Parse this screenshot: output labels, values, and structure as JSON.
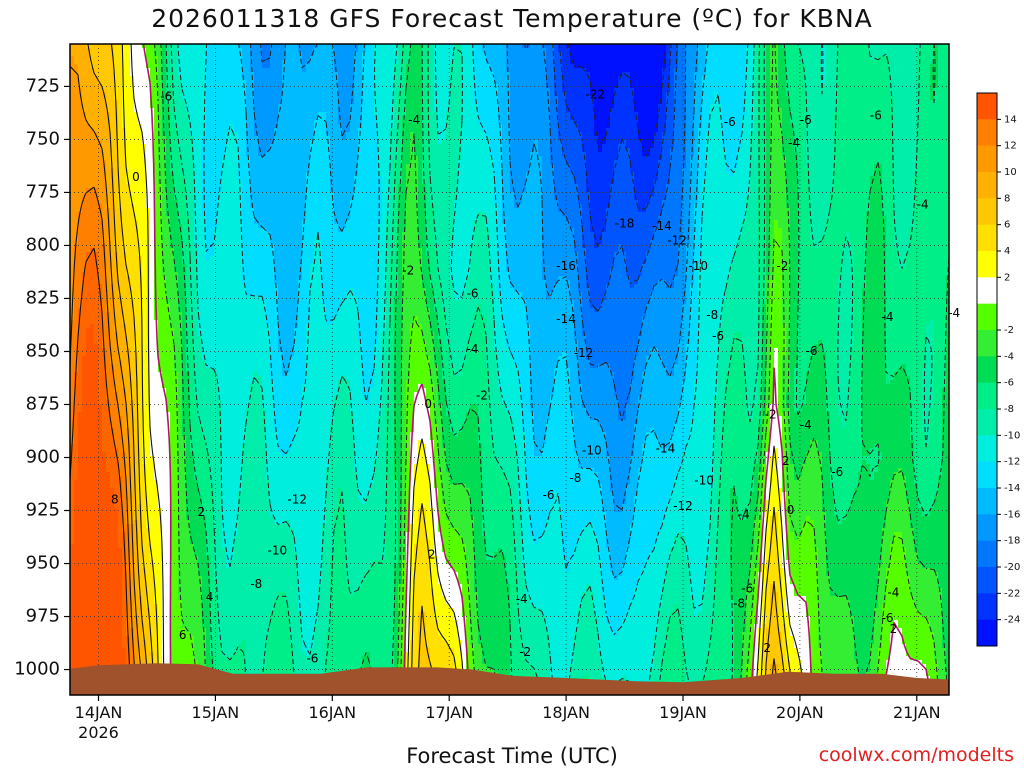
{
  "title": "2026011318 GFS Forecast Temperature (ºC) for KBNA",
  "credit": "coolwx.com/modelts",
  "chart_data": {
    "type": "heatmap",
    "title": "2026011318 GFS Forecast Temperature (ºC) for KBNA",
    "xlabel": "Forecast Time (UTC)",
    "ylabel": "",
    "x_ticks": [
      "14JAN",
      "15JAN",
      "16JAN",
      "17JAN",
      "18JAN",
      "19JAN",
      "20JAN",
      "21JAN"
    ],
    "x_tick_sublabel": "2026",
    "y_ticks": [
      725,
      750,
      775,
      800,
      825,
      850,
      875,
      900,
      925,
      950,
      975,
      1000
    ],
    "y_range": [
      1012,
      705
    ],
    "x_range_days": [
      0,
      7.4
    ],
    "grid": true,
    "colorbar": {
      "placement": "right",
      "tick_labels": [
        14,
        12,
        10,
        8,
        6,
        4,
        2,
        -2,
        -4,
        -6,
        -8,
        -10,
        -12,
        -14,
        -16,
        -18,
        -20,
        -22,
        -24
      ],
      "levels": [
        {
          "value": 16,
          "color": "#ff5500"
        },
        {
          "value": 14,
          "color": "#ff6600"
        },
        {
          "value": 12,
          "color": "#ff7f00"
        },
        {
          "value": 10,
          "color": "#ff9900"
        },
        {
          "value": 8,
          "color": "#ffb000"
        },
        {
          "value": 6,
          "color": "#ffc800"
        },
        {
          "value": 4,
          "color": "#ffe000"
        },
        {
          "value": 2,
          "color": "#ffff00"
        },
        {
          "value": 0,
          "color": "#ffffff"
        },
        {
          "value": -2,
          "color": "#55ff00"
        },
        {
          "value": -4,
          "color": "#33ee33"
        },
        {
          "value": -6,
          "color": "#00dd55"
        },
        {
          "value": -8,
          "color": "#00ee88"
        },
        {
          "value": -10,
          "color": "#00eeaa"
        },
        {
          "value": -12,
          "color": "#00eedd"
        },
        {
          "value": -14,
          "color": "#00ddff"
        },
        {
          "value": -16,
          "color": "#00bbff"
        },
        {
          "value": -18,
          "color": "#0099ff"
        },
        {
          "value": -20,
          "color": "#0077ff"
        },
        {
          "value": -22,
          "color": "#0055ff"
        },
        {
          "value": -24,
          "color": "#0033ff"
        },
        {
          "value": -26,
          "color": "#0011ff"
        }
      ]
    },
    "contour_labels": [
      {
        "t": 0.58,
        "p": 730,
        "text": "-6"
      },
      {
        "t": 0.32,
        "p": 768,
        "text": "0"
      },
      {
        "t": 0.14,
        "p": 920,
        "text": "8"
      },
      {
        "t": 0.88,
        "p": 926,
        "text": "2"
      },
      {
        "t": 0.95,
        "p": 966,
        "text": "4"
      },
      {
        "t": 0.72,
        "p": 984,
        "text": "6"
      },
      {
        "t": 1.7,
        "p": 920,
        "text": "-12"
      },
      {
        "t": 1.53,
        "p": 944,
        "text": "-10"
      },
      {
        "t": 1.35,
        "p": 960,
        "text": "-8"
      },
      {
        "t": 1.83,
        "p": 995,
        "text": "-6"
      },
      {
        "t": 2.7,
        "p": 741,
        "text": "-4"
      },
      {
        "t": 2.65,
        "p": 812,
        "text": "-2"
      },
      {
        "t": 3.2,
        "p": 823,
        "text": "-6"
      },
      {
        "t": 3.2,
        "p": 849,
        "text": "-4"
      },
      {
        "t": 3.28,
        "p": 871,
        "text": "-2"
      },
      {
        "t": 2.82,
        "p": 875,
        "text": "0"
      },
      {
        "t": 2.85,
        "p": 946,
        "text": "2"
      },
      {
        "t": 4.25,
        "p": 729,
        "text": "-22"
      },
      {
        "t": 4.5,
        "p": 790,
        "text": "-18"
      },
      {
        "t": 4.82,
        "p": 791,
        "text": "-14"
      },
      {
        "t": 4.0,
        "p": 810,
        "text": "-16"
      },
      {
        "t": 4.95,
        "p": 798,
        "text": "-12"
      },
      {
        "t": 4.0,
        "p": 835,
        "text": "-14"
      },
      {
        "t": 4.15,
        "p": 851,
        "text": "-12"
      },
      {
        "t": 5.13,
        "p": 810,
        "text": "-10"
      },
      {
        "t": 5.25,
        "p": 833,
        "text": "-8"
      },
      {
        "t": 5.3,
        "p": 843,
        "text": "-6"
      },
      {
        "t": 5.4,
        "p": 742,
        "text": "-6"
      },
      {
        "t": 4.85,
        "p": 896,
        "text": "-14"
      },
      {
        "t": 4.22,
        "p": 897,
        "text": "-10"
      },
      {
        "t": 4.08,
        "p": 910,
        "text": "-8"
      },
      {
        "t": 3.85,
        "p": 918,
        "text": "-6"
      },
      {
        "t": 3.62,
        "p": 967,
        "text": "-4"
      },
      {
        "t": 3.65,
        "p": 992,
        "text": "-2"
      },
      {
        "t": 5.18,
        "p": 911,
        "text": "-10"
      },
      {
        "t": 5.0,
        "p": 923,
        "text": "-12"
      },
      {
        "t": 5.52,
        "p": 927,
        "text": "-4"
      },
      {
        "t": 5.55,
        "p": 962,
        "text": "-6"
      },
      {
        "t": 5.48,
        "p": 969,
        "text": "-8"
      },
      {
        "t": 6.05,
        "p": 741,
        "text": "-6"
      },
      {
        "t": 5.95,
        "p": 752,
        "text": "-4"
      },
      {
        "t": 5.85,
        "p": 810,
        "text": "-2"
      },
      {
        "t": 6.1,
        "p": 850,
        "text": "-6"
      },
      {
        "t": 5.75,
        "p": 880,
        "text": "-2"
      },
      {
        "t": 6.05,
        "p": 885,
        "text": "-4"
      },
      {
        "t": 5.88,
        "p": 902,
        "text": "2"
      },
      {
        "t": 6.32,
        "p": 907,
        "text": "-6"
      },
      {
        "t": 5.92,
        "p": 925,
        "text": "0"
      },
      {
        "t": 5.72,
        "p": 990,
        "text": "2"
      },
      {
        "t": 6.65,
        "p": 739,
        "text": "-6"
      },
      {
        "t": 7.05,
        "p": 781,
        "text": "-4"
      },
      {
        "t": 6.75,
        "p": 834,
        "text": "-4"
      },
      {
        "t": 7.32,
        "p": 832,
        "text": "-4"
      },
      {
        "t": 6.8,
        "p": 964,
        "text": "-4"
      },
      {
        "t": 6.75,
        "p": 976,
        "text": "-6"
      },
      {
        "t": 6.8,
        "p": 981,
        "text": "2"
      }
    ]
  }
}
